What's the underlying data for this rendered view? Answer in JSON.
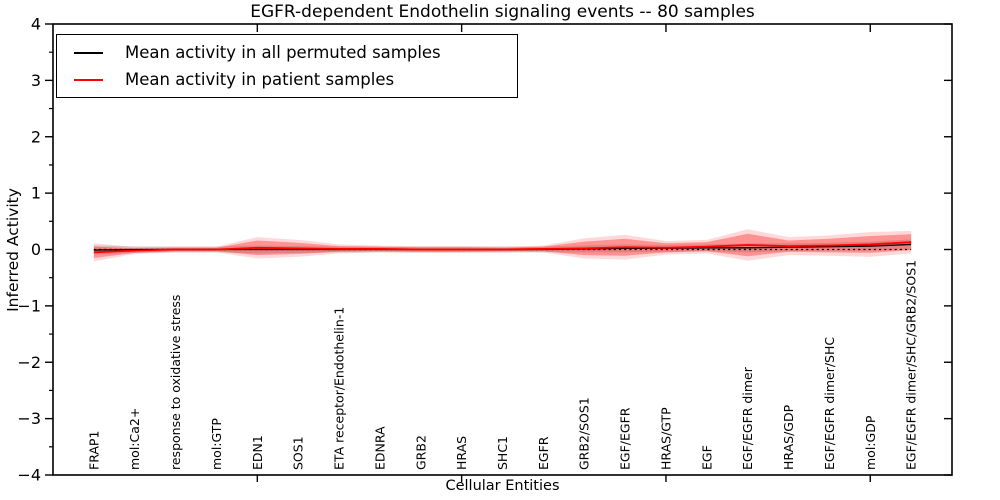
{
  "chart_data": {
    "type": "line",
    "title": "EGFR-dependent Endothelin signaling events -- 80 samples",
    "xlabel": "Cellular Entities",
    "ylabel": "Inferred Activity",
    "ylim": [
      -4,
      4
    ],
    "xlim": [
      0,
      22
    ],
    "yticks": [
      -4,
      -3,
      -2,
      -1,
      0,
      1,
      2,
      3,
      4
    ],
    "ytick_minor_step": 0.5,
    "xticks_major": [
      5,
      10,
      15,
      20
    ],
    "grid": false,
    "legend_position": "upper-left",
    "frame_color": "#000000",
    "zero_line": {
      "y": 0,
      "style": "dotted",
      "color": "#000000"
    },
    "categories": [
      "FRAP1",
      "mol:Ca2+",
      "response to oxidative stress",
      "mol:GTP",
      "EDN1",
      "SOS1",
      "ETA receptor/Endothelin-1",
      "EDNRA",
      "GRB2",
      "HRAS",
      "SHC1",
      "EGFR",
      "GRB2/SOS1",
      "EGF/EGFR",
      "HRAS/GTP",
      "EGF",
      "EGF/EGFR dimer",
      "HRAS/GDP",
      "EGF/EGFR dimer/SHC",
      "mol:GDP",
      "EGF/EGFR dimer/SHC/GRB2/SOS1"
    ],
    "series": [
      {
        "name": "Mean activity in all permuted samples",
        "color": "#000000",
        "values": [
          -0.01,
          0.0,
          0.0,
          0.0,
          0.0,
          0.0,
          0.0,
          0.0,
          0.0,
          0.0,
          0.0,
          0.0,
          0.01,
          0.02,
          0.02,
          0.03,
          0.03,
          0.04,
          0.05,
          0.06,
          0.09
        ],
        "band_halfwidths": [
          0.08,
          0.06,
          0.05,
          0.05,
          0.07,
          0.06,
          0.05,
          0.05,
          0.05,
          0.05,
          0.05,
          0.05,
          0.06,
          0.07,
          0.06,
          0.06,
          0.08,
          0.07,
          0.07,
          0.08,
          0.09
        ],
        "band_color": "rgba(0,0,0,0.13)"
      },
      {
        "name": "Mean activity in patient samples",
        "color": "#ff0000",
        "values": [
          -0.05,
          -0.02,
          0.0,
          0.0,
          0.03,
          0.02,
          0.01,
          0.01,
          0.0,
          0.0,
          0.0,
          0.01,
          0.02,
          0.04,
          0.03,
          0.05,
          0.08,
          0.06,
          0.07,
          0.09,
          0.13
        ],
        "band_inner_halfwidths": [
          0.1,
          0.04,
          0.03,
          0.03,
          0.13,
          0.1,
          0.05,
          0.04,
          0.04,
          0.04,
          0.03,
          0.04,
          0.12,
          0.15,
          0.08,
          0.08,
          0.2,
          0.1,
          0.12,
          0.15,
          0.14
        ],
        "band_inner_color": "rgba(255,0,0,0.32)",
        "band_outer_halfwidths": [
          0.16,
          0.06,
          0.05,
          0.05,
          0.19,
          0.15,
          0.08,
          0.06,
          0.06,
          0.06,
          0.05,
          0.06,
          0.18,
          0.22,
          0.12,
          0.12,
          0.28,
          0.16,
          0.18,
          0.22,
          0.2
        ],
        "band_outer_color": "rgba(255,0,0,0.15)"
      }
    ]
  }
}
